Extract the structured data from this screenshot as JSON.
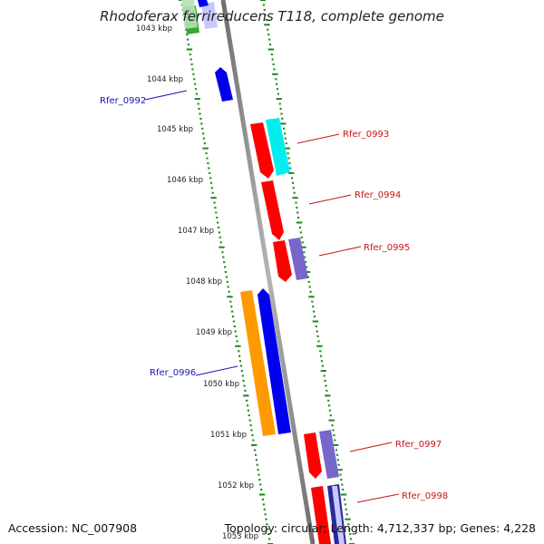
{
  "title": "Rhodoferax ferrireducens T118, complete genome",
  "accession": "Accession: NC_007908",
  "topology": "Topology: circular; Length: 4,712,337 bp; Genes: 4,228",
  "ticks": [
    "1043 kbp",
    "1044 kbp",
    "1045 kbp",
    "1046 kbp",
    "1047 kbp",
    "1048 kbp",
    "1049 kbp",
    "1050 kbp",
    "1051 kbp",
    "1052 kbp",
    "1053 kbp"
  ],
  "gene_labels": [
    {
      "text": "Rfer_0992",
      "side": "left",
      "color": "#1414b4"
    },
    {
      "text": "Rfer_0993",
      "side": "right",
      "color": "#c81414"
    },
    {
      "text": "Rfer_0994",
      "side": "right",
      "color": "#c81414"
    },
    {
      "text": "Rfer_0995",
      "side": "right",
      "color": "#c81414"
    },
    {
      "text": "Rfer_0996",
      "side": "left",
      "color": "#1414b4"
    },
    {
      "text": "Rfer_0997",
      "side": "right",
      "color": "#c81414"
    },
    {
      "text": "Rfer_0998",
      "side": "right",
      "color": "#c81414"
    }
  ],
  "colors": {
    "backbone": "#8a8a8a",
    "tick_marks": "#1a8a1a",
    "blue": "#0000ee",
    "red": "#ff0000",
    "cyan": "#00eeee",
    "purple": "#7766cc",
    "orange": "#ff9900",
    "green": "#33aa33",
    "light_blue": "#c8c8ff"
  }
}
